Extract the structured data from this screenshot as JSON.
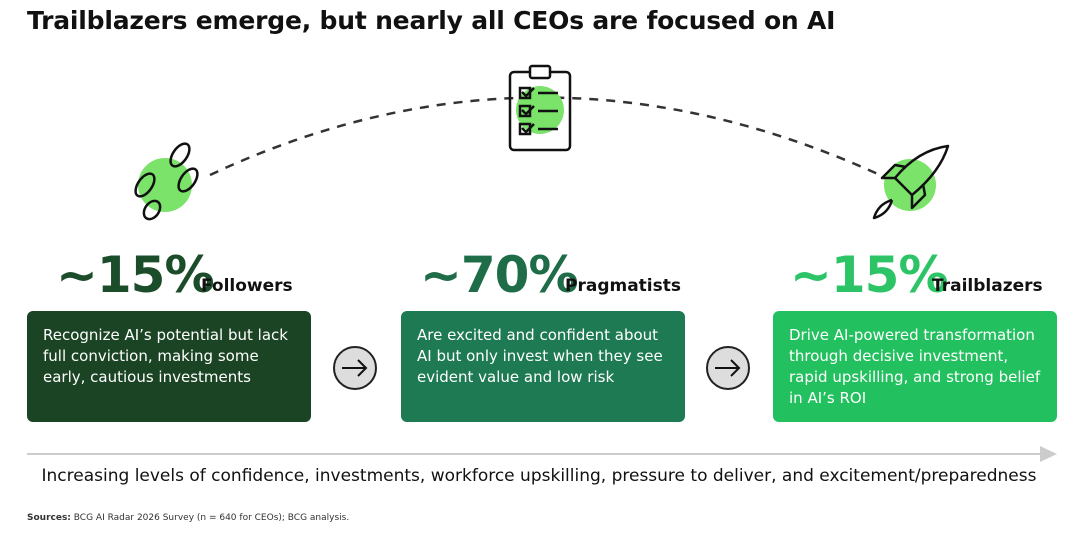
{
  "title": "Trailblazers emerge, but nearly all CEOs are focused on AI",
  "segments": [
    {
      "percent": "~15%",
      "label": "Followers",
      "description": "Recognize AI’s potential but lack full conviction, making some early, cautious investments"
    },
    {
      "percent": "~70%",
      "label": "Pragmatists",
      "description": "Are excited and confident about AI but only invest when they see evident value and low risk"
    },
    {
      "percent": "~15%",
      "label": "Trailblazers",
      "description": "Drive AI-powered transformation through decisive investment, rapid upskilling, and strong belief in AI’s ROI"
    }
  ],
  "axis_caption": "Increasing levels of confidence, investments, workforce upskilling, pressure to deliver, and excitement/preparedness",
  "sources": {
    "label": "Sources:",
    "text": "BCG AI Radar 2026 Survey (n = 640 for CEOs); BCG analysis."
  }
}
